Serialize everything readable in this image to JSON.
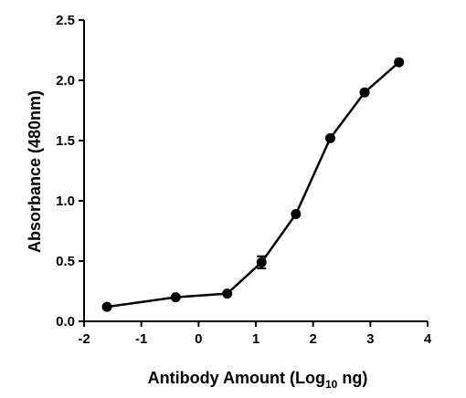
{
  "chart_data": {
    "type": "line",
    "ylabel": "Absorbance (480nm)",
    "xlabel_parts": [
      "Antibody Amount (Log",
      "10",
      " ng)"
    ],
    "x": [
      -1.6,
      -0.4,
      0.5,
      1.1,
      1.7,
      2.3,
      2.9,
      3.5
    ],
    "series": [
      {
        "color": "#000000",
        "values": [
          0.12,
          0.2,
          0.23,
          0.49,
          0.89,
          1.52,
          1.9,
          2.15
        ],
        "errors": [
          null,
          null,
          null,
          0.05,
          null,
          null,
          null,
          null
        ]
      }
    ],
    "xlim": [
      -2,
      4
    ],
    "xticks": [
      -2,
      -1,
      0,
      1,
      2,
      3,
      4
    ],
    "ylim": [
      0,
      2.5
    ],
    "yticks": [
      {
        "value": 0,
        "label": "0.0"
      },
      0.5,
      {
        "value": 1,
        "label": "1.0"
      },
      1.5,
      {
        "value": 2,
        "label": "2.0"
      },
      2.5
    ]
  }
}
